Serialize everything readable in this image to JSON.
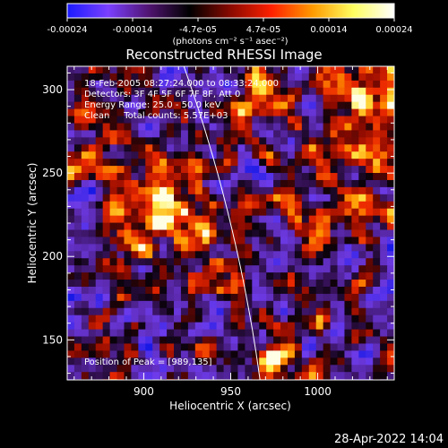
{
  "colorbar": {
    "tick_labels": [
      "-0.00024",
      "-0.00014",
      "-4.7e-05",
      "4.7e-05",
      "0.00014",
      "0.00024"
    ],
    "unit_label": "(photons cm⁻² s⁻¹ asec⁻²)",
    "colors": [
      "#1a1aff",
      "#7a40ff",
      "#501470",
      "#000000",
      "#8a0a00",
      "#ff2000",
      "#ff9a00",
      "#ffff60",
      "#ffffff"
    ]
  },
  "annotations": [
    "18-Feb-2005 08:27:24.000 to 08:33:24.000",
    "Detectors: 3F 4F 5F 6F 7F 8F, Att 0",
    "Energy Range: 25.0 - 50.0 keV",
    "Clean     Total counts: 5.57E+03"
  ],
  "peak_label": "Position of Peak = [989,135]",
  "timestamp": "28-Apr-2022 14:04",
  "chart_data": {
    "type": "heatmap",
    "title": "Reconstructed RHESSI Image",
    "xlabel": "Heliocentric X (arcsec)",
    "ylabel": "Heliocentric Y (arcsec)",
    "xlim": [
      856,
      1044
    ],
    "ylim": [
      126,
      314
    ],
    "x_ticks": [
      "900",
      "950",
      "1000"
    ],
    "y_ticks": [
      "150",
      "200",
      "250",
      "300"
    ],
    "peak_position": [
      989,
      135
    ],
    "limb": true
  }
}
